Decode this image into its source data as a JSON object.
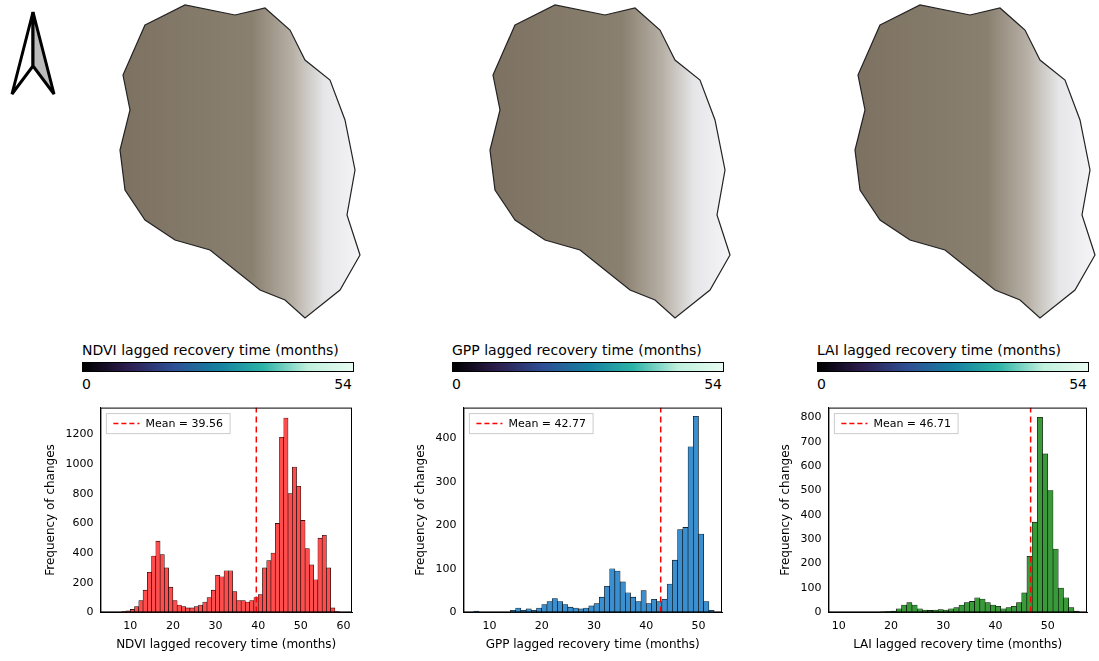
{
  "chart_data": [
    {
      "type": "histogram",
      "colorbar": {
        "title": "NDVI lagged recovery time (months)",
        "range": [
          0,
          54
        ],
        "ticks": [
          0,
          54
        ]
      },
      "x_label": "NDVI lagged recovery time (months)",
      "y_label": "Frequency of changes",
      "bins": [
        5,
        6,
        7,
        8,
        9,
        10,
        11,
        12,
        13,
        14,
        15,
        16,
        17,
        18,
        19,
        20,
        21,
        22,
        23,
        24,
        25,
        26,
        27,
        28,
        29,
        30,
        31,
        32,
        33,
        34,
        35,
        36,
        37,
        38,
        39,
        40,
        41,
        42,
        43,
        44,
        45,
        46,
        47,
        48,
        49,
        50,
        51,
        52,
        53,
        54,
        55,
        56,
        57,
        58,
        59
      ],
      "counts": [
        0,
        0,
        0,
        5,
        10,
        20,
        40,
        80,
        150,
        270,
        380,
        480,
        390,
        300,
        170,
        80,
        50,
        40,
        30,
        30,
        40,
        50,
        70,
        100,
        150,
        250,
        240,
        280,
        280,
        140,
        80,
        80,
        70,
        80,
        100,
        120,
        300,
        350,
        400,
        600,
        1180,
        1310,
        800,
        980,
        850,
        620,
        430,
        320,
        220,
        500,
        520,
        300,
        30,
        5
      ],
      "color": "#ff4d4d",
      "xlim": [
        3,
        62
      ],
      "xticks": [
        10,
        20,
        30,
        40,
        50,
        60
      ],
      "ylim": [
        0,
        1380
      ],
      "yticks": [
        0,
        200,
        400,
        600,
        800,
        1000,
        1200
      ],
      "mean": {
        "value": 39.56,
        "label": "Mean = 39.56",
        "color": "#ff0000",
        "line_style": "dashed"
      },
      "legend": "upper left",
      "grid": false
    },
    {
      "type": "histogram",
      "colorbar": {
        "title": "GPP lagged recovery time (months)",
        "range": [
          0,
          54
        ],
        "ticks": [
          0,
          54
        ]
      },
      "x_label": "GPP lagged recovery time (months)",
      "y_label": "Frequency of changes",
      "bins": [
        7,
        8,
        9,
        10,
        11,
        12,
        13,
        14,
        15,
        16,
        17,
        18,
        19,
        20,
        21,
        22,
        23,
        24,
        25,
        26,
        27,
        28,
        29,
        30,
        31,
        32,
        33,
        34,
        35,
        36,
        37,
        38,
        39,
        40,
        41,
        42,
        43,
        44,
        45,
        46,
        47,
        48,
        49,
        50,
        51,
        52,
        53
      ],
      "counts": [
        3,
        0,
        0,
        0,
        0,
        0,
        0,
        5,
        10,
        5,
        8,
        5,
        10,
        18,
        25,
        32,
        25,
        18,
        12,
        10,
        8,
        10,
        15,
        20,
        35,
        60,
        100,
        95,
        70,
        45,
        35,
        25,
        50,
        20,
        30,
        25,
        30,
        65,
        120,
        190,
        195,
        380,
        450,
        180,
        25,
        5
      ],
      "color": "#3b8fce",
      "xlim": [
        5,
        54.5
      ],
      "xticks": [
        10,
        20,
        30,
        40,
        50
      ],
      "ylim": [
        0,
        470
      ],
      "yticks": [
        0,
        100,
        200,
        300,
        400
      ],
      "mean": {
        "value": 42.77,
        "label": "Mean = 42.77",
        "color": "#ff0000",
        "line_style": "dashed"
      },
      "legend": "upper left",
      "grid": false
    },
    {
      "type": "histogram",
      "colorbar": {
        "title": "LAI lagged recovery time (months)",
        "range": [
          0,
          54
        ],
        "ticks": [
          0,
          54
        ]
      },
      "x_label": "LAI lagged recovery time (months)",
      "y_label": "Frequency of changes",
      "bins": [
        10,
        11,
        12,
        13,
        14,
        15,
        16,
        17,
        18,
        19,
        20,
        21,
        22,
        23,
        24,
        25,
        26,
        27,
        28,
        29,
        30,
        31,
        32,
        33,
        34,
        35,
        36,
        37,
        38,
        39,
        40,
        41,
        42,
        43,
        44,
        45,
        46,
        47,
        48,
        49,
        50,
        51,
        52,
        53,
        54,
        55,
        56
      ],
      "counts": [
        0,
        0,
        0,
        0,
        0,
        0,
        0,
        0,
        2,
        3,
        5,
        15,
        30,
        40,
        30,
        15,
        10,
        8,
        10,
        12,
        10,
        15,
        20,
        30,
        40,
        45,
        60,
        55,
        40,
        30,
        25,
        15,
        20,
        25,
        40,
        80,
        230,
        370,
        800,
        650,
        500,
        260,
        100,
        60,
        20,
        5
      ],
      "color": "#3a9a3a",
      "xlim": [
        8,
        57.5
      ],
      "xticks": [
        10,
        20,
        30,
        40,
        50
      ],
      "ylim": [
        0,
        840
      ],
      "yticks": [
        0,
        100,
        200,
        300,
        400,
        500,
        600,
        700,
        800
      ],
      "mean": {
        "value": 46.71,
        "label": "Mean = 46.71",
        "color": "#ff0000",
        "line_style": "dashed"
      },
      "legend": "upper left",
      "grid": false
    }
  ]
}
